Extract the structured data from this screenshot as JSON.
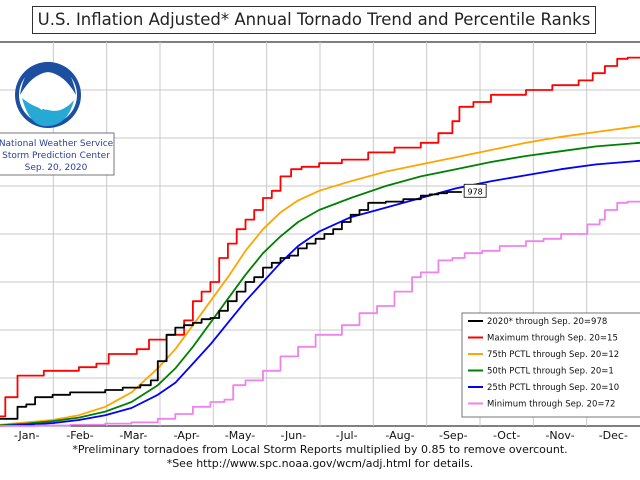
{
  "chart_data": {
    "type": "line",
    "title": "U.S. Inflation Adjusted* Annual Tornado Trend and Percentile Ranks",
    "x_unit": "day of year",
    "xlim": [
      0,
      365
    ],
    "ylim": [
      0,
      1600
    ],
    "months": [
      "-Jan-",
      "-Feb-",
      "-Mar-",
      "-Apr-",
      "-May-",
      "-Jun-",
      "-Jul-",
      "-Aug-",
      "-Sep-",
      "-Oct-",
      "-Nov-",
      "-Dec-"
    ],
    "series": [
      {
        "name": "Maximum",
        "legend": "Maximum through Sep. 20=15",
        "color": "#ff0000",
        "points": [
          [
            0,
            40
          ],
          [
            3,
            120
          ],
          [
            10,
            210
          ],
          [
            25,
            230
          ],
          [
            45,
            245
          ],
          [
            55,
            260
          ],
          [
            62,
            300
          ],
          [
            72,
            300
          ],
          [
            78,
            320
          ],
          [
            85,
            360
          ],
          [
            95,
            380
          ],
          [
            105,
            440
          ],
          [
            110,
            520
          ],
          [
            115,
            560
          ],
          [
            120,
            600
          ],
          [
            125,
            700
          ],
          [
            130,
            760
          ],
          [
            135,
            820
          ],
          [
            140,
            860
          ],
          [
            145,
            900
          ],
          [
            150,
            950
          ],
          [
            155,
            980
          ],
          [
            160,
            1040
          ],
          [
            166,
            1070
          ],
          [
            172,
            1080
          ],
          [
            182,
            1095
          ],
          [
            195,
            1110
          ],
          [
            210,
            1140
          ],
          [
            225,
            1160
          ],
          [
            240,
            1180
          ],
          [
            250,
            1220
          ],
          [
            258,
            1270
          ],
          [
            262,
            1330
          ],
          [
            270,
            1350
          ],
          [
            280,
            1380
          ],
          [
            300,
            1400
          ],
          [
            315,
            1420
          ],
          [
            330,
            1440
          ],
          [
            338,
            1470
          ],
          [
            345,
            1500
          ],
          [
            352,
            1530
          ],
          [
            358,
            1535
          ],
          [
            365,
            1535
          ]
        ]
      },
      {
        "name": "75th PCTL",
        "legend": "75th PCTL through Sep. 20=12",
        "color": "#ffa500",
        "points": [
          [
            0,
            5
          ],
          [
            15,
            15
          ],
          [
            30,
            25
          ],
          [
            45,
            45
          ],
          [
            60,
            80
          ],
          [
            75,
            140
          ],
          [
            90,
            240
          ],
          [
            100,
            320
          ],
          [
            110,
            420
          ],
          [
            120,
            520
          ],
          [
            130,
            620
          ],
          [
            140,
            730
          ],
          [
            150,
            820
          ],
          [
            160,
            890
          ],
          [
            170,
            940
          ],
          [
            182,
            980
          ],
          [
            200,
            1020
          ],
          [
            220,
            1060
          ],
          [
            240,
            1090
          ],
          [
            260,
            1120
          ],
          [
            280,
            1150
          ],
          [
            300,
            1180
          ],
          [
            320,
            1205
          ],
          [
            340,
            1225
          ],
          [
            365,
            1250
          ]
        ]
      },
      {
        "name": "50th PCTL",
        "legend": "50th PCTL through Sep. 20=1",
        "color": "#008000",
        "points": [
          [
            0,
            3
          ],
          [
            15,
            10
          ],
          [
            30,
            20
          ],
          [
            45,
            35
          ],
          [
            60,
            60
          ],
          [
            75,
            100
          ],
          [
            90,
            170
          ],
          [
            100,
            240
          ],
          [
            110,
            330
          ],
          [
            120,
            430
          ],
          [
            130,
            530
          ],
          [
            140,
            630
          ],
          [
            150,
            720
          ],
          [
            160,
            790
          ],
          [
            170,
            850
          ],
          [
            182,
            900
          ],
          [
            200,
            950
          ],
          [
            220,
            1000
          ],
          [
            240,
            1040
          ],
          [
            260,
            1070
          ],
          [
            280,
            1100
          ],
          [
            300,
            1125
          ],
          [
            320,
            1145
          ],
          [
            340,
            1165
          ],
          [
            365,
            1180
          ]
        ]
      },
      {
        "name": "25th PCTL",
        "legend": "25th PCTL through Sep. 20=10",
        "color": "#0000ff",
        "points": [
          [
            0,
            0
          ],
          [
            15,
            5
          ],
          [
            30,
            12
          ],
          [
            45,
            25
          ],
          [
            60,
            45
          ],
          [
            75,
            75
          ],
          [
            90,
            130
          ],
          [
            100,
            180
          ],
          [
            110,
            260
          ],
          [
            120,
            340
          ],
          [
            130,
            430
          ],
          [
            140,
            520
          ],
          [
            150,
            600
          ],
          [
            160,
            680
          ],
          [
            170,
            750
          ],
          [
            182,
            810
          ],
          [
            200,
            870
          ],
          [
            220,
            910
          ],
          [
            240,
            950
          ],
          [
            260,
            990
          ],
          [
            280,
            1020
          ],
          [
            300,
            1045
          ],
          [
            320,
            1070
          ],
          [
            340,
            1090
          ],
          [
            365,
            1105
          ]
        ]
      },
      {
        "name": "Minimum",
        "legend": "Minimum through Sep. 20=72",
        "color": "#ee82ee",
        "points": [
          [
            0,
            0
          ],
          [
            20,
            2
          ],
          [
            40,
            5
          ],
          [
            60,
            10
          ],
          [
            75,
            15
          ],
          [
            90,
            30
          ],
          [
            100,
            50
          ],
          [
            110,
            80
          ],
          [
            120,
            100
          ],
          [
            128,
            110
          ],
          [
            133,
            170
          ],
          [
            140,
            190
          ],
          [
            150,
            230
          ],
          [
            160,
            290
          ],
          [
            170,
            330
          ],
          [
            180,
            380
          ],
          [
            195,
            420
          ],
          [
            205,
            470
          ],
          [
            215,
            500
          ],
          [
            225,
            560
          ],
          [
            235,
            620
          ],
          [
            240,
            640
          ],
          [
            250,
            690
          ],
          [
            258,
            700
          ],
          [
            265,
            720
          ],
          [
            275,
            730
          ],
          [
            285,
            750
          ],
          [
            300,
            770
          ],
          [
            310,
            780
          ],
          [
            320,
            800
          ],
          [
            335,
            840
          ],
          [
            342,
            860
          ],
          [
            345,
            900
          ],
          [
            352,
            930
          ],
          [
            358,
            935
          ],
          [
            365,
            935
          ]
        ]
      },
      {
        "name": "2020",
        "legend": "2020* through Sep. 20=978",
        "color": "#000000",
        "points": [
          [
            0,
            30
          ],
          [
            10,
            80
          ],
          [
            15,
            90
          ],
          [
            20,
            120
          ],
          [
            30,
            130
          ],
          [
            40,
            140
          ],
          [
            50,
            140
          ],
          [
            60,
            150
          ],
          [
            70,
            160
          ],
          [
            80,
            170
          ],
          [
            86,
            190
          ],
          [
            90,
            270
          ],
          [
            95,
            380
          ],
          [
            100,
            410
          ],
          [
            105,
            420
          ],
          [
            110,
            430
          ],
          [
            115,
            445
          ],
          [
            120,
            450
          ],
          [
            125,
            480
          ],
          [
            130,
            520
          ],
          [
            135,
            560
          ],
          [
            140,
            600
          ],
          [
            145,
            620
          ],
          [
            150,
            660
          ],
          [
            155,
            680
          ],
          [
            160,
            700
          ],
          [
            165,
            710
          ],
          [
            170,
            740
          ],
          [
            175,
            760
          ],
          [
            180,
            780
          ],
          [
            185,
            800
          ],
          [
            190,
            820
          ],
          [
            195,
            850
          ],
          [
            200,
            880
          ],
          [
            205,
            900
          ],
          [
            210,
            930
          ],
          [
            220,
            935
          ],
          [
            230,
            945
          ],
          [
            240,
            960
          ],
          [
            245,
            965
          ],
          [
            250,
            970
          ],
          [
            255,
            975
          ],
          [
            263,
            978
          ]
        ]
      }
    ],
    "end_annotation": "978",
    "logo_text": "NOAA",
    "nws_lines": [
      "National Weather Service",
      "Storm Prediction Center",
      "Sep. 20, 2020"
    ]
  },
  "footnote": {
    "line1": "*Preliminary tornadoes from Local Storm Reports multiplied by 0.85 to remove overcount.",
    "line2": "*See http://www.spc.noaa.gov/wcm/adj.html for details."
  }
}
